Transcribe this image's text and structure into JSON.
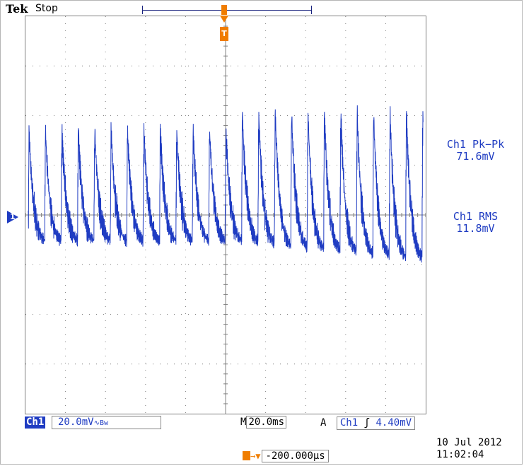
{
  "header": {
    "brand": "Tek",
    "run_state": "Stop"
  },
  "channel": {
    "name": "Ch1",
    "marker": "1",
    "scale": "20.0mV",
    "coupling_icon": "∿Bw"
  },
  "timebase": {
    "label": "M",
    "value": "20.0ms"
  },
  "trigger": {
    "mode": "A",
    "source": "Ch1",
    "slope": "ʃ",
    "level": "4.40mV",
    "marker": "T",
    "offset": "-200.000µs"
  },
  "measurements": [
    {
      "label": "Ch1 Pk−Pk",
      "value": "71.6mV"
    },
    {
      "label": "Ch1 RMS",
      "value": "11.8mV"
    }
  ],
  "datetime": {
    "date": "10 Jul  2012",
    "time": "11:02:04"
  },
  "colors": {
    "trace": "#1f3cc2",
    "trigger": "#f07d00",
    "grid": "#808080"
  }
}
